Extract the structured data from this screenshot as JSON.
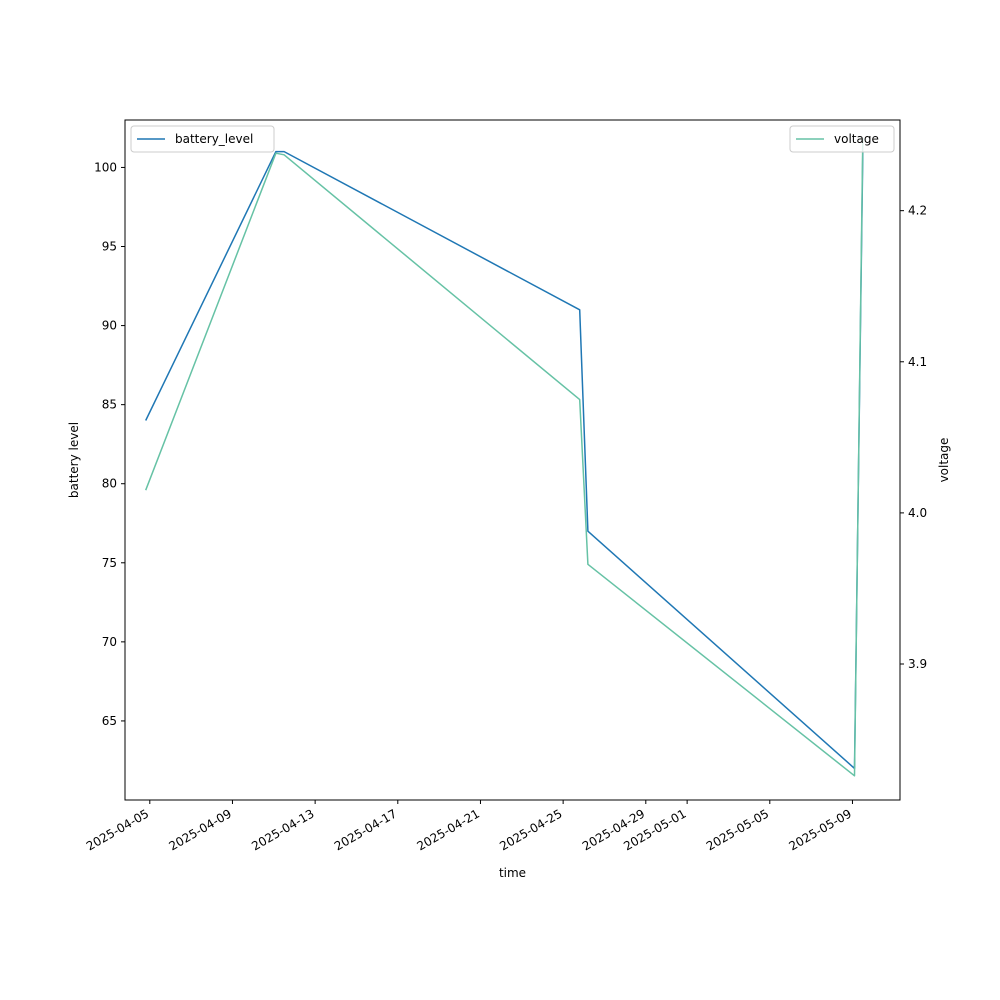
{
  "chart_data": {
    "type": "line",
    "title": "",
    "xlabel": "time",
    "ylabel": "battery level",
    "y2label": "voltage",
    "xlim": [
      "2025-04-03T19:12",
      "2025-05-11T07:12"
    ],
    "ylim": [
      60.0,
      103.0
    ],
    "y2lim": [
      3.81,
      4.26
    ],
    "x_ticks": [
      "2025-04-05",
      "2025-04-09",
      "2025-04-13",
      "2025-04-17",
      "2025-04-21",
      "2025-04-25",
      "2025-04-29",
      "2025-05-01",
      "2025-05-05",
      "2025-05-09"
    ],
    "y_ticks": [
      65,
      70,
      75,
      80,
      85,
      90,
      95,
      100
    ],
    "y2_ticks": [
      "3.9",
      "4.0",
      "4.1",
      "4.2"
    ],
    "grid": false,
    "series": [
      {
        "name": "battery_level",
        "axis": "left",
        "color": "#1f77b4",
        "legend_position": "upper-left",
        "x": [
          "2025-04-04T19:12",
          "2025-04-11T02:24",
          "2025-04-11T12:00",
          "2025-04-25T19:12",
          "2025-04-26T04:48",
          "2025-05-09T02:24",
          "2025-05-09T12:00"
        ],
        "values": [
          84,
          101,
          101,
          91,
          77,
          62,
          101
        ]
      },
      {
        "name": "voltage",
        "axis": "right",
        "color": "#66c2a5",
        "legend_position": "upper-right",
        "x": [
          "2025-04-04T19:12",
          "2025-04-11T02:24",
          "2025-04-11T12:00",
          "2025-04-25T19:12",
          "2025-04-26T04:48",
          "2025-05-09T02:24",
          "2025-05-09T12:00"
        ],
        "values": [
          4.015,
          4.238,
          4.237,
          4.075,
          3.966,
          3.826,
          4.248
        ]
      }
    ]
  }
}
